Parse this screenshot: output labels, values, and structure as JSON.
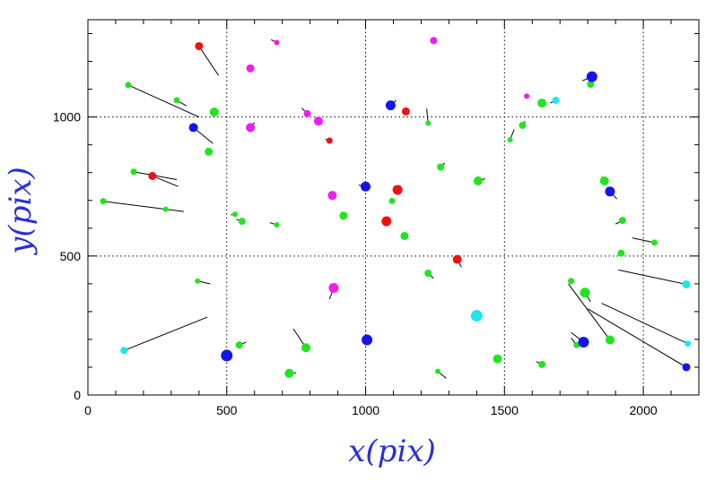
{
  "chart_data": {
    "type": "scatter",
    "title": "",
    "xlabel": "x(pix)",
    "ylabel": "y(pix)",
    "xlim": [
      0,
      2200
    ],
    "ylim": [
      0,
      1350
    ],
    "xticks": [
      0,
      500,
      1000,
      1500,
      2000
    ],
    "yticks": [
      0,
      500,
      1000
    ],
    "grid": "dotted lines at x=500,1000,1500,2000 and y=500,1000",
    "colors": {
      "green": "#1ee61e",
      "red": "#f01010",
      "magenta": "#f01cf0",
      "blue": "#1414f0",
      "cyan": "#1ee6f0",
      "axis_label": "#2630d8"
    },
    "points": [
      {
        "x": 400,
        "y": 1255,
        "r": 4.5,
        "color": "red",
        "vx": 470,
        "vy": 1150
      },
      {
        "x": 145,
        "y": 1115,
        "r": 3.5,
        "color": "green",
        "vx": 400,
        "vy": 1000
      },
      {
        "x": 320,
        "y": 1060,
        "r": 3.5,
        "color": "green",
        "vx": 355,
        "vy": 1040
      },
      {
        "x": 455,
        "y": 1018,
        "r": 5,
        "color": "green"
      },
      {
        "x": 380,
        "y": 962,
        "r": 5,
        "color": "blue",
        "vx": 450,
        "vy": 905
      },
      {
        "x": 435,
        "y": 875,
        "r": 4.5,
        "color": "green"
      },
      {
        "x": 165,
        "y": 803,
        "r": 3.5,
        "color": "green",
        "vx": 320,
        "vy": 775
      },
      {
        "x": 232,
        "y": 788,
        "r": 4.5,
        "color": "red",
        "vx": 325,
        "vy": 750
      },
      {
        "x": 55,
        "y": 697,
        "r": 3.5,
        "color": "green",
        "vx": 345,
        "vy": 660
      },
      {
        "x": 280,
        "y": 668,
        "r": 3,
        "color": "green"
      },
      {
        "x": 530,
        "y": 650,
        "r": 3,
        "color": "green",
        "vx": 515,
        "vy": 648
      },
      {
        "x": 555,
        "y": 625,
        "r": 4,
        "color": "green",
        "vx": 535,
        "vy": 632
      },
      {
        "x": 680,
        "y": 612,
        "r": 3,
        "color": "green",
        "vx": 655,
        "vy": 620
      },
      {
        "x": 680,
        "y": 1268,
        "r": 3,
        "color": "magenta",
        "vx": 660,
        "vy": 1278
      },
      {
        "x": 585,
        "y": 1175,
        "r": 4.5,
        "color": "magenta"
      },
      {
        "x": 585,
        "y": 962,
        "r": 5,
        "color": "magenta",
        "vx": 600,
        "vy": 980
      },
      {
        "x": 790,
        "y": 1012,
        "r": 4,
        "color": "magenta",
        "vx": 770,
        "vy": 1032
      },
      {
        "x": 830,
        "y": 985,
        "r": 5,
        "color": "magenta"
      },
      {
        "x": 870,
        "y": 915,
        "r": 3.5,
        "color": "red",
        "vx": 855,
        "vy": 920
      },
      {
        "x": 1090,
        "y": 1042,
        "r": 5.5,
        "color": "blue",
        "vx": 1110,
        "vy": 1060
      },
      {
        "x": 1145,
        "y": 1020,
        "r": 4.5,
        "color": "red"
      },
      {
        "x": 1225,
        "y": 978,
        "r": 3,
        "color": "green",
        "vx": 1220,
        "vy": 1030
      },
      {
        "x": 1245,
        "y": 1275,
        "r": 4,
        "color": "magenta"
      },
      {
        "x": 1270,
        "y": 820,
        "r": 4,
        "color": "green",
        "vx": 1285,
        "vy": 835
      },
      {
        "x": 1405,
        "y": 770,
        "r": 5,
        "color": "green",
        "vx": 1430,
        "vy": 778
      },
      {
        "x": 1520,
        "y": 918,
        "r": 3,
        "color": "green",
        "vx": 1535,
        "vy": 955
      },
      {
        "x": 1565,
        "y": 970,
        "r": 4,
        "color": "green",
        "vx": 1575,
        "vy": 985
      },
      {
        "x": 1580,
        "y": 1075,
        "r": 3,
        "color": "magenta"
      },
      {
        "x": 1635,
        "y": 1050,
        "r": 5,
        "color": "green"
      },
      {
        "x": 1685,
        "y": 1060,
        "r": 4,
        "color": "cyan",
        "vx": 1665,
        "vy": 1050
      },
      {
        "x": 1810,
        "y": 1118,
        "r": 4,
        "color": "green"
      },
      {
        "x": 1815,
        "y": 1145,
        "r": 6,
        "color": "blue",
        "vx": 1780,
        "vy": 1130
      },
      {
        "x": 1860,
        "y": 770,
        "r": 5,
        "color": "green",
        "vx": 1850,
        "vy": 785
      },
      {
        "x": 1880,
        "y": 732,
        "r": 5.5,
        "color": "blue",
        "vx": 1905,
        "vy": 705
      },
      {
        "x": 1925,
        "y": 628,
        "r": 4,
        "color": "green",
        "vx": 1900,
        "vy": 615
      },
      {
        "x": 2040,
        "y": 548,
        "r": 3.5,
        "color": "green",
        "vx": 1960,
        "vy": 565
      },
      {
        "x": 1920,
        "y": 510,
        "r": 4,
        "color": "green"
      },
      {
        "x": 880,
        "y": 718,
        "r": 5,
        "color": "magenta"
      },
      {
        "x": 1000,
        "y": 750,
        "r": 5.5,
        "color": "blue",
        "vx": 975,
        "vy": 755
      },
      {
        "x": 1115,
        "y": 738,
        "r": 5.5,
        "color": "red"
      },
      {
        "x": 1095,
        "y": 698,
        "r": 3.5,
        "color": "green"
      },
      {
        "x": 1075,
        "y": 625,
        "r": 5.5,
        "color": "red"
      },
      {
        "x": 1140,
        "y": 572,
        "r": 4.5,
        "color": "green"
      },
      {
        "x": 920,
        "y": 645,
        "r": 4.5,
        "color": "green"
      },
      {
        "x": 1330,
        "y": 488,
        "r": 5,
        "color": "red",
        "vx": 1345,
        "vy": 460
      },
      {
        "x": 1225,
        "y": 438,
        "r": 4,
        "color": "green",
        "vx": 1245,
        "vy": 420
      },
      {
        "x": 395,
        "y": 410,
        "r": 3,
        "color": "green",
        "vx": 440,
        "vy": 400
      },
      {
        "x": 885,
        "y": 385,
        "r": 5.5,
        "color": "magenta",
        "vx": 870,
        "vy": 345
      },
      {
        "x": 1740,
        "y": 410,
        "r": 3.5,
        "color": "green"
      },
      {
        "x": 1790,
        "y": 368,
        "r": 5.5,
        "color": "green",
        "vx": 1810,
        "vy": 335
      },
      {
        "x": 2155,
        "y": 398,
        "r": 4.5,
        "color": "cyan",
        "vx": 1910,
        "vy": 450
      },
      {
        "x": 130,
        "y": 160,
        "r": 4,
        "color": "cyan",
        "vx": 430,
        "vy": 280
      },
      {
        "x": 500,
        "y": 142,
        "r": 6.5,
        "color": "blue"
      },
      {
        "x": 545,
        "y": 180,
        "r": 4,
        "color": "green",
        "vx": 570,
        "vy": 190
      },
      {
        "x": 785,
        "y": 170,
        "r": 5,
        "color": "green",
        "vx": 740,
        "vy": 238
      },
      {
        "x": 725,
        "y": 78,
        "r": 5,
        "color": "green",
        "vx": 750,
        "vy": 80
      },
      {
        "x": 1005,
        "y": 198,
        "r": 6,
        "color": "blue"
      },
      {
        "x": 1400,
        "y": 285,
        "r": 6.5,
        "color": "cyan"
      },
      {
        "x": 1475,
        "y": 130,
        "r": 5,
        "color": "green"
      },
      {
        "x": 1260,
        "y": 85,
        "r": 3,
        "color": "green",
        "vx": 1290,
        "vy": 60
      },
      {
        "x": 1635,
        "y": 110,
        "r": 4,
        "color": "green",
        "vx": 1615,
        "vy": 120
      },
      {
        "x": 1760,
        "y": 180,
        "r": 3.5,
        "color": "green",
        "vx": 1740,
        "vy": 205
      },
      {
        "x": 1785,
        "y": 190,
        "r": 6,
        "color": "blue",
        "vx": 1740,
        "vy": 225
      },
      {
        "x": 1880,
        "y": 198,
        "r": 5,
        "color": "green",
        "vx": 1730,
        "vy": 400
      },
      {
        "x": 2160,
        "y": 185,
        "r": 3.5,
        "color": "cyan",
        "vx": 1850,
        "vy": 330
      },
      {
        "x": 2155,
        "y": 100,
        "r": 4.5,
        "color": "blue",
        "vx": 1800,
        "vy": 310
      }
    ]
  }
}
